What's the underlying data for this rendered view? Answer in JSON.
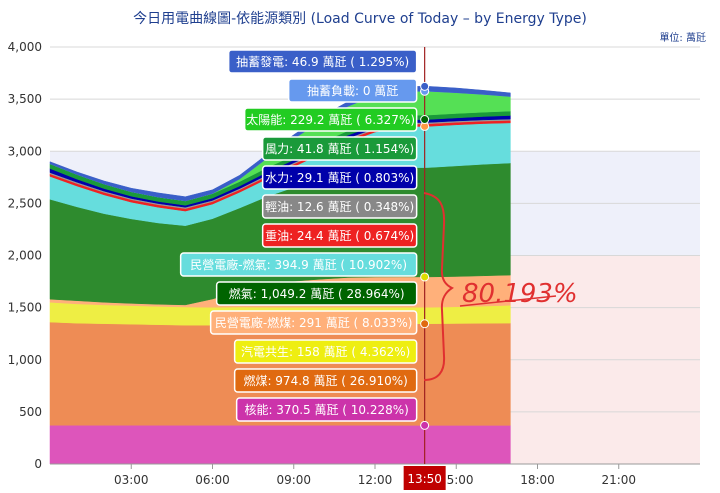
{
  "header": {
    "title": "今日用電曲線圖-依能源類別 (Load Curve of Today – by Energy Type)",
    "unit": "單位: 萬瓩"
  },
  "cursor": {
    "time_label": "13:50"
  },
  "annotation": {
    "text": "80.193%"
  },
  "colors": {
    "accent": "#c00000",
    "title": "#1f3f8f"
  },
  "chart_data": {
    "type": "area",
    "title": "今日用電曲線圖-依能源類別 (Load Curve of Today – by Energy Type)",
    "unit": "萬瓩",
    "ylim": [
      0,
      4000
    ],
    "yticks": [
      0,
      500,
      1000,
      1500,
      2000,
      2500,
      3000,
      3500,
      4000
    ],
    "ytick_labels": [
      "0",
      "500",
      "1,000",
      "1,500",
      "2,000",
      "2,500",
      "3,000",
      "3,500",
      "4,000"
    ],
    "xlim_hours": [
      0,
      24
    ],
    "xticks_hours": [
      3,
      6,
      9,
      12,
      15,
      18,
      21
    ],
    "xtick_labels": [
      "03:00",
      "06:00",
      "09:00",
      "12:00",
      "15:00",
      "18:00",
      "21:00"
    ],
    "grid": true,
    "x": [
      "00:00",
      "01:00",
      "02:00",
      "03:00",
      "04:00",
      "05:00",
      "06:00",
      "07:00",
      "08:00",
      "09:00",
      "10:00",
      "11:00",
      "12:00",
      "13:00",
      "13:50",
      "14:00",
      "15:00",
      "16:00",
      "17:00"
    ],
    "series": [
      {
        "name": "核能",
        "color": "#dd55bb",
        "values": [
          371,
          371,
          371,
          371,
          371,
          371,
          371,
          371,
          371,
          371,
          371,
          371,
          371,
          370.5,
          370.5,
          370.5,
          370,
          370,
          370
        ]
      },
      {
        "name": "燃煤",
        "color": "#ee8c55",
        "values": [
          990,
          980,
          975,
          970,
          965,
          960,
          960,
          965,
          968,
          970,
          972,
          974,
          975,
          975,
          974.8,
          975,
          978,
          980,
          982
        ]
      },
      {
        "name": "汽電共生",
        "color": "#eeee44",
        "values": [
          190,
          185,
          180,
          178,
          176,
          175,
          172,
          170,
          165,
          162,
          160,
          159,
          158,
          158,
          158,
          158,
          160,
          165,
          170
        ]
      },
      {
        "name": "民營電廠-燃煤",
        "color": "#ffb07a",
        "values": [
          30,
          30,
          25,
          22,
          20,
          20,
          80,
          150,
          200,
          250,
          270,
          285,
          290,
          291,
          291,
          291,
          291,
          290,
          290
        ]
      },
      {
        "name": "燃氣",
        "color": "#2e8b2e",
        "values": [
          958,
          900,
          850,
          810,
          780,
          760,
          770,
          800,
          860,
          900,
          950,
          1000,
          1030,
          1049,
          1049.2,
          1050,
          1060,
          1070,
          1075
        ]
      },
      {
        "name": "民營電廠-燃氣",
        "color": "#66dddd",
        "values": [
          220,
          200,
          180,
          160,
          150,
          140,
          140,
          150,
          170,
          200,
          250,
          300,
          360,
          392,
          394.9,
          395,
          395,
          390,
          385
        ]
      },
      {
        "name": "重油",
        "color": "#ee2222",
        "values": [
          24,
          24,
          24,
          24,
          24,
          24,
          24,
          24,
          24,
          24,
          24,
          24,
          24,
          24.4,
          24.4,
          24.4,
          24,
          24,
          24
        ]
      },
      {
        "name": "輕油",
        "color": "#999999",
        "values": [
          12,
          12,
          12,
          12,
          12,
          12,
          12,
          12,
          12,
          12,
          12,
          12,
          12,
          12.6,
          12.6,
          12.6,
          12,
          12,
          12
        ]
      },
      {
        "name": "水力",
        "color": "#0000aa",
        "values": [
          40,
          30,
          25,
          22,
          20,
          20,
          22,
          25,
          28,
          28,
          29,
          29,
          29,
          29,
          29.1,
          29,
          30,
          32,
          35
        ]
      },
      {
        "name": "風力",
        "color": "#1a9a3a",
        "values": [
          45,
          44,
          43,
          42,
          42,
          42,
          42,
          42,
          42,
          42,
          42,
          42,
          42,
          42,
          41.8,
          42,
          42,
          42,
          42
        ]
      },
      {
        "name": "太陽能",
        "color": "#55e055",
        "values": [
          0,
          0,
          0,
          0,
          0,
          0,
          2,
          25,
          90,
          160,
          210,
          235,
          245,
          232,
          229.2,
          228,
          200,
          170,
          140
        ]
      },
      {
        "name": "抽蓄負載",
        "color": "#6699ee",
        "values": [
          0,
          0,
          0,
          0,
          0,
          0,
          0,
          0,
          0,
          0,
          0,
          0,
          0,
          0,
          0,
          0,
          0,
          0,
          0
        ]
      },
      {
        "name": "抽蓄發電",
        "color": "#3a5fc8",
        "values": [
          20,
          25,
          30,
          35,
          40,
          40,
          35,
          35,
          38,
          40,
          42,
          44,
          46,
          47,
          46.9,
          47,
          45,
          40,
          35
        ]
      }
    ],
    "tooltip_at": "13:50",
    "tooltip": [
      {
        "label": "抽蓄發電: 46.9 萬瓩 ( 1.295%)",
        "bg": "#3a5fc8",
        "fg": "#ffffff",
        "value": 46.9
      },
      {
        "label": "抽蓄負載: 0 萬瓩",
        "bg": "#6699ee",
        "fg": "#ffffff",
        "value": 0
      },
      {
        "label": "太陽能: 229.2 萬瓩 ( 6.327%)",
        "bg": "#22cc22",
        "fg": "#ffffff",
        "value": 229.2
      },
      {
        "label": "風力: 41.8 萬瓩 ( 1.154%)",
        "bg": "#1a9a3a",
        "fg": "#ffffff",
        "value": 41.8
      },
      {
        "label": "水力: 29.1 萬瓩 ( 0.803%)",
        "bg": "#0000aa",
        "fg": "#ffffff",
        "value": 29.1
      },
      {
        "label": "輕油: 12.6 萬瓩 ( 0.348%)",
        "bg": "#888888",
        "fg": "#ffffff",
        "value": 12.6
      },
      {
        "label": "重油: 24.4 萬瓩 ( 0.674%)",
        "bg": "#ee2222",
        "fg": "#ffffff",
        "value": 24.4
      },
      {
        "label": "民營電廠-燃氣: 394.9 萬瓩 ( 10.902%)",
        "bg": "#66dddd",
        "fg": "#ffffff",
        "value": 394.9
      },
      {
        "label": "燃氣: 1,049.2 萬瓩 ( 28.964%)",
        "bg": "#006400",
        "fg": "#ffffff",
        "value": 1049.2
      },
      {
        "label": "民營電廠-燃煤: 291 萬瓩 ( 8.033%)",
        "bg": "#ffb07a",
        "fg": "#ffffff",
        "value": 291
      },
      {
        "label": "汽電共生: 158 萬瓩 ( 4.362%)",
        "bg": "#eeee11",
        "fg": "#ffffff",
        "value": 158
      },
      {
        "label": "燃煤: 974.8 萬瓩 ( 26.910%)",
        "bg": "#e06a10",
        "fg": "#ffffff",
        "value": 974.8
      },
      {
        "label": "核能: 370.5 萬瓩 ( 10.228%)",
        "bg": "#cc33aa",
        "fg": "#ffffff",
        "value": 370.5
      }
    ]
  }
}
